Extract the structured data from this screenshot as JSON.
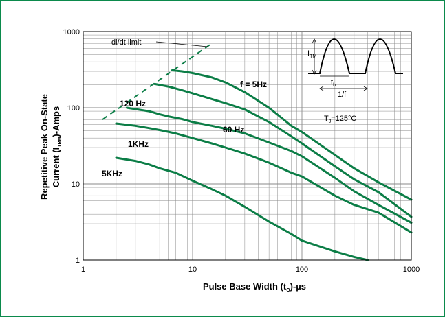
{
  "chart_data": {
    "type": "line",
    "x_scale": "log",
    "y_scale": "log",
    "xlim": [
      1,
      1000
    ],
    "ylim": [
      1,
      1000
    ],
    "grid": true,
    "x_ticks": [
      "1",
      "10",
      "100",
      "1000"
    ],
    "y_ticks": [
      "1",
      "10",
      "100",
      "1000"
    ],
    "xlabel": {
      "pre": "Pulse Base Width (t",
      "sub": "O",
      "post": ")-µs"
    },
    "ylabel": {
      "line1": "Repetitive Peak On-State",
      "line2_pre": "Current (I",
      "line2_sub": "TRM",
      "line2_post": ")-Amps"
    },
    "annotations": {
      "didt": "di/dt limit",
      "tj_pre": "T",
      "tj_sub": "J",
      "tj_post": "=125°C"
    },
    "inset": {
      "itm": "I",
      "itm_sub": "TM",
      "tb": "t",
      "tb_sub": "b",
      "period": "1/f"
    },
    "didt_line": {
      "x": [
        1.5,
        15
      ],
      "y": [
        70,
        700
      ]
    },
    "series": [
      {
        "name": "f = 5Hz",
        "x": [
          6.5,
          8,
          10,
          15,
          20,
          30,
          50,
          80,
          100,
          200,
          300,
          500,
          1000
        ],
        "y": [
          310,
          300,
          285,
          250,
          215,
          160,
          100,
          58,
          48,
          24,
          16,
          10.5,
          6.2
        ]
      },
      {
        "name": "60 Hz",
        "x": [
          4.5,
          6,
          8,
          10,
          15,
          20,
          30,
          50,
          80,
          100,
          200,
          300,
          500,
          1000
        ],
        "y": [
          205,
          190,
          170,
          155,
          130,
          115,
          95,
          65,
          42,
          34,
          17,
          11.5,
          7.8,
          3.7
        ]
      },
      {
        "name": "120 Hz",
        "x": [
          2.5,
          3,
          4,
          5,
          6,
          8,
          10,
          15,
          20,
          30,
          50,
          80,
          100,
          200,
          300,
          500,
          1000
        ],
        "y": [
          100,
          96,
          90,
          82,
          77,
          71,
          65,
          58,
          53,
          46,
          35,
          27,
          23,
          12,
          8,
          5.3,
          3.1
        ]
      },
      {
        "name": "1KHz",
        "x": [
          2,
          3,
          4,
          5,
          7,
          10,
          15,
          20,
          30,
          50,
          80,
          100,
          200,
          300,
          500,
          1000
        ],
        "y": [
          62,
          58,
          54,
          51,
          46,
          40,
          34,
          30,
          25,
          19,
          14,
          12.5,
          7,
          5.3,
          4.2,
          2.3
        ]
      },
      {
        "name": "5KHz",
        "x": [
          2,
          3,
          4,
          5,
          7,
          10,
          15,
          20,
          30,
          50,
          80,
          100,
          200,
          300,
          400
        ],
        "y": [
          22,
          20,
          18,
          16,
          14,
          11,
          8.5,
          7,
          5,
          3.2,
          2.2,
          1.8,
          1.3,
          1.1,
          1.0
        ]
      }
    ]
  },
  "colors": {
    "curve": "#0b7d46",
    "frame": "#0b8a4c",
    "grid": "#8a8a8a"
  }
}
